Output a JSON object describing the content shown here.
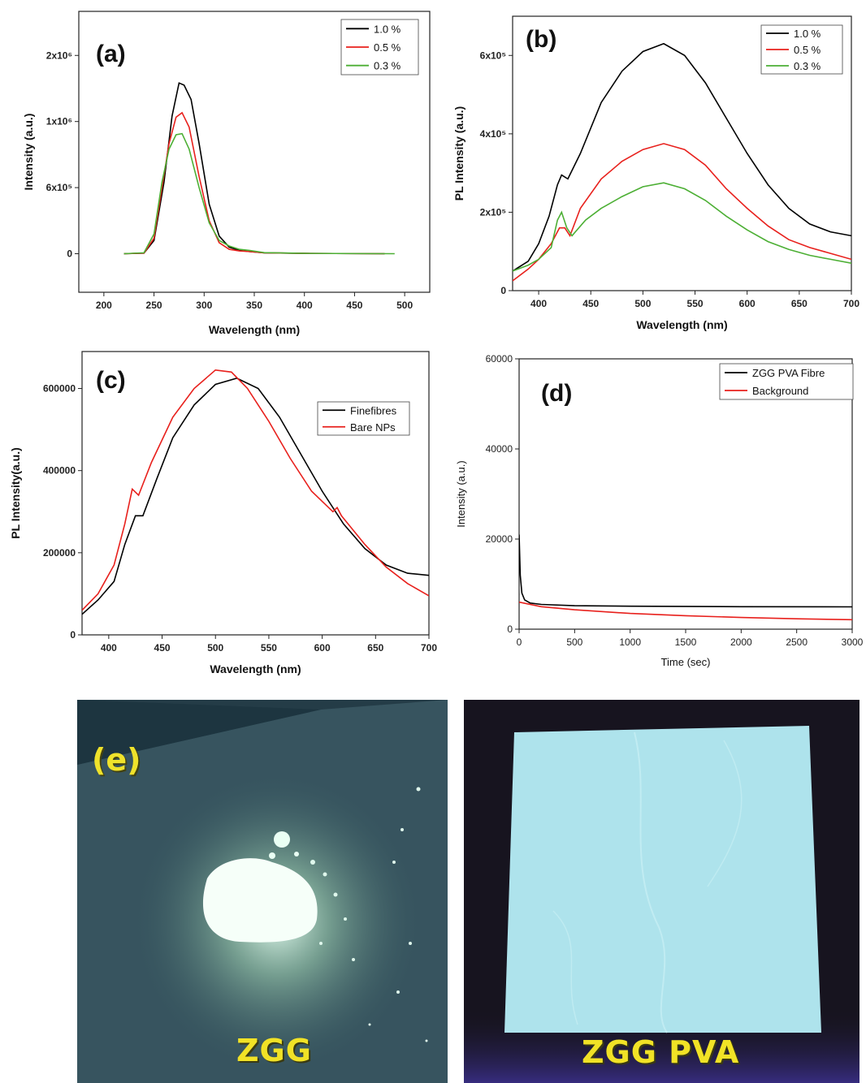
{
  "chart_data": [
    {
      "panel": "(a)",
      "type": "line",
      "xlabel": "Wavelength (nm)",
      "ylabel": "Intensity (a.u.)",
      "xlim": [
        175,
        525
      ],
      "ylim": [
        -350000,
        2200000
      ],
      "x_ticks": [
        "200",
        "250",
        "300",
        "350",
        "400",
        "450",
        "500"
      ],
      "y_ticks": [
        {
          "value": 0,
          "label": "0"
        },
        {
          "value": 600000,
          "label": "6x10⁵"
        },
        {
          "value": 1200000,
          "label": "1x10⁶"
        },
        {
          "value": 1800000,
          "label": "2x10⁶"
        }
      ],
      "legend_position": "top-right",
      "series": [
        {
          "name": "1.0 %",
          "color": "#000000",
          "points": [
            [
              220,
              0
            ],
            [
              240,
              5000
            ],
            [
              250,
              120000
            ],
            [
              260,
              650000
            ],
            [
              268,
              1250000
            ],
            [
              275,
              1550000
            ],
            [
              280,
              1530000
            ],
            [
              287,
              1400000
            ],
            [
              295,
              1000000
            ],
            [
              305,
              450000
            ],
            [
              315,
              160000
            ],
            [
              325,
              60000
            ],
            [
              335,
              30000
            ],
            [
              345,
              20000
            ],
            [
              360,
              8000
            ],
            [
              400,
              3000
            ],
            [
              480,
              0
            ]
          ]
        },
        {
          "name": "0.5 %",
          "color": "#e8201c",
          "points": [
            [
              220,
              0
            ],
            [
              240,
              5000
            ],
            [
              250,
              140000
            ],
            [
              258,
              600000
            ],
            [
              265,
              1000000
            ],
            [
              272,
              1240000
            ],
            [
              278,
              1280000
            ],
            [
              285,
              1150000
            ],
            [
              295,
              700000
            ],
            [
              305,
              300000
            ],
            [
              315,
              100000
            ],
            [
              325,
              40000
            ],
            [
              335,
              25000
            ],
            [
              345,
              20000
            ],
            [
              360,
              8000
            ],
            [
              400,
              3000
            ],
            [
              480,
              0
            ]
          ]
        },
        {
          "name": "0.3 %",
          "color": "#4caf34",
          "points": [
            [
              220,
              0
            ],
            [
              240,
              8000
            ],
            [
              250,
              180000
            ],
            [
              258,
              650000
            ],
            [
              265,
              950000
            ],
            [
              272,
              1080000
            ],
            [
              278,
              1090000
            ],
            [
              285,
              950000
            ],
            [
              295,
              600000
            ],
            [
              305,
              280000
            ],
            [
              315,
              120000
            ],
            [
              325,
              70000
            ],
            [
              335,
              40000
            ],
            [
              345,
              30000
            ],
            [
              360,
              10000
            ],
            [
              400,
              3000
            ],
            [
              490,
              0
            ]
          ]
        }
      ]
    },
    {
      "panel": "(b)",
      "type": "line",
      "xlabel": "Wavelength (nm)",
      "ylabel": "PL Intensity (a.u.)",
      "xlim": [
        375,
        700
      ],
      "ylim": [
        0,
        700000
      ],
      "x_ticks": [
        "400",
        "450",
        "500",
        "550",
        "600",
        "650",
        "700"
      ],
      "y_ticks": [
        {
          "value": 0,
          "label": "0"
        },
        {
          "value": 200000,
          "label": "2x10⁵"
        },
        {
          "value": 400000,
          "label": "4x10⁵"
        },
        {
          "value": 600000,
          "label": "6x10⁵"
        }
      ],
      "legend_position": "top-right",
      "series": [
        {
          "name": "1.0 %",
          "color": "#000000",
          "points": [
            [
              375,
              50000
            ],
            [
              390,
              75000
            ],
            [
              400,
              120000
            ],
            [
              410,
              190000
            ],
            [
              418,
              270000
            ],
            [
              422,
              295000
            ],
            [
              428,
              285000
            ],
            [
              440,
              350000
            ],
            [
              460,
              480000
            ],
            [
              480,
              560000
            ],
            [
              500,
              610000
            ],
            [
              520,
              630000
            ],
            [
              540,
              600000
            ],
            [
              560,
              530000
            ],
            [
              580,
              440000
            ],
            [
              600,
              350000
            ],
            [
              620,
              270000
            ],
            [
              640,
              210000
            ],
            [
              660,
              170000
            ],
            [
              680,
              150000
            ],
            [
              700,
              140000
            ]
          ]
        },
        {
          "name": "0.5 %",
          "color": "#e8201c",
          "points": [
            [
              375,
              25000
            ],
            [
              390,
              55000
            ],
            [
              400,
              80000
            ],
            [
              412,
              120000
            ],
            [
              420,
              160000
            ],
            [
              425,
              160000
            ],
            [
              430,
              140000
            ],
            [
              440,
              210000
            ],
            [
              460,
              285000
            ],
            [
              480,
              330000
            ],
            [
              500,
              360000
            ],
            [
              520,
              375000
            ],
            [
              540,
              360000
            ],
            [
              560,
              320000
            ],
            [
              580,
              260000
            ],
            [
              600,
              210000
            ],
            [
              620,
              165000
            ],
            [
              640,
              130000
            ],
            [
              660,
              110000
            ],
            [
              680,
              95000
            ],
            [
              700,
              80000
            ]
          ]
        },
        {
          "name": "0.3 %",
          "color": "#4caf34",
          "points": [
            [
              375,
              50000
            ],
            [
              390,
              65000
            ],
            [
              400,
              80000
            ],
            [
              412,
              110000
            ],
            [
              418,
              180000
            ],
            [
              422,
              200000
            ],
            [
              427,
              160000
            ],
            [
              432,
              140000
            ],
            [
              445,
              180000
            ],
            [
              460,
              210000
            ],
            [
              480,
              240000
            ],
            [
              500,
              265000
            ],
            [
              520,
              275000
            ],
            [
              540,
              260000
            ],
            [
              560,
              230000
            ],
            [
              580,
              190000
            ],
            [
              600,
              155000
            ],
            [
              620,
              125000
            ],
            [
              640,
              105000
            ],
            [
              660,
              90000
            ],
            [
              680,
              80000
            ],
            [
              700,
              70000
            ]
          ]
        }
      ]
    },
    {
      "panel": "(c)",
      "type": "line",
      "xlabel": "Wavelength (nm)",
      "ylabel": "PL Intensity(a.u.)",
      "xlim": [
        375,
        700
      ],
      "ylim": [
        0,
        690000
      ],
      "x_ticks": [
        "400",
        "450",
        "500",
        "550",
        "600",
        "650",
        "700"
      ],
      "y_ticks": [
        {
          "value": 0,
          "label": "0"
        },
        {
          "value": 200000,
          "label": "200000"
        },
        {
          "value": 400000,
          "label": "400000"
        },
        {
          "value": 600000,
          "label": "600000"
        }
      ],
      "legend_position": "right",
      "series": [
        {
          "name": "Finefibres",
          "color": "#000000",
          "points": [
            [
              375,
              50000
            ],
            [
              390,
              85000
            ],
            [
              405,
              130000
            ],
            [
              415,
              220000
            ],
            [
              425,
              290000
            ],
            [
              432,
              290000
            ],
            [
              445,
              380000
            ],
            [
              460,
              480000
            ],
            [
              480,
              560000
            ],
            [
              500,
              610000
            ],
            [
              520,
              625000
            ],
            [
              540,
              600000
            ],
            [
              560,
              530000
            ],
            [
              580,
              440000
            ],
            [
              600,
              350000
            ],
            [
              620,
              270000
            ],
            [
              640,
              210000
            ],
            [
              660,
              170000
            ],
            [
              680,
              150000
            ],
            [
              700,
              145000
            ]
          ]
        },
        {
          "name": "Bare NPs",
          "color": "#e8201c",
          "points": [
            [
              375,
              60000
            ],
            [
              390,
              100000
            ],
            [
              405,
              170000
            ],
            [
              415,
              270000
            ],
            [
              422,
              355000
            ],
            [
              428,
              340000
            ],
            [
              440,
              420000
            ],
            [
              460,
              530000
            ],
            [
              480,
              600000
            ],
            [
              500,
              645000
            ],
            [
              515,
              640000
            ],
            [
              530,
              600000
            ],
            [
              550,
              520000
            ],
            [
              570,
              430000
            ],
            [
              590,
              350000
            ],
            [
              610,
              300000
            ],
            [
              614,
              310000
            ],
            [
              618,
              290000
            ],
            [
              640,
              220000
            ],
            [
              660,
              165000
            ],
            [
              680,
              125000
            ],
            [
              700,
              95000
            ]
          ]
        }
      ]
    },
    {
      "panel": "(d)",
      "type": "line",
      "xlabel": "Time (sec)",
      "ylabel": "Intensity (a.u.)",
      "xlim": [
        0,
        3000
      ],
      "ylim": [
        0,
        60000
      ],
      "x_ticks": [
        "0",
        "500",
        "1000",
        "1500",
        "2000",
        "2500",
        "3000"
      ],
      "y_ticks": [
        {
          "value": 0,
          "label": "0"
        },
        {
          "value": 20000,
          "label": "20000"
        },
        {
          "value": 40000,
          "label": "40000"
        },
        {
          "value": 60000,
          "label": "60000"
        }
      ],
      "legend_position": "top-right",
      "series": [
        {
          "name": "ZGG PVA Fibre",
          "color": "#000000",
          "points": [
            [
              0,
              21000
            ],
            [
              10,
              12000
            ],
            [
              25,
              8000
            ],
            [
              50,
              6500
            ],
            [
              100,
              5800
            ],
            [
              200,
              5500
            ],
            [
              500,
              5200
            ],
            [
              1000,
              5100
            ],
            [
              2000,
              5000
            ],
            [
              3000,
              4950
            ]
          ]
        },
        {
          "name": "Background",
          "color": "#e8201c",
          "points": [
            [
              0,
              6000
            ],
            [
              200,
              5000
            ],
            [
              500,
              4300
            ],
            [
              1000,
              3500
            ],
            [
              1500,
              3000
            ],
            [
              2000,
              2600
            ],
            [
              2500,
              2300
            ],
            [
              3000,
              2100
            ]
          ]
        }
      ]
    }
  ],
  "figure": {
    "panel_e_label": "(e)",
    "photo_left_caption": "ZGG",
    "photo_right_caption": "ZGG PVA",
    "colors": {
      "photo_bg_left": "#2d4a56",
      "photo_bg_right": "#1a1624",
      "fibre_mat": "#aee3ec",
      "glow": "#f3fff6"
    }
  }
}
